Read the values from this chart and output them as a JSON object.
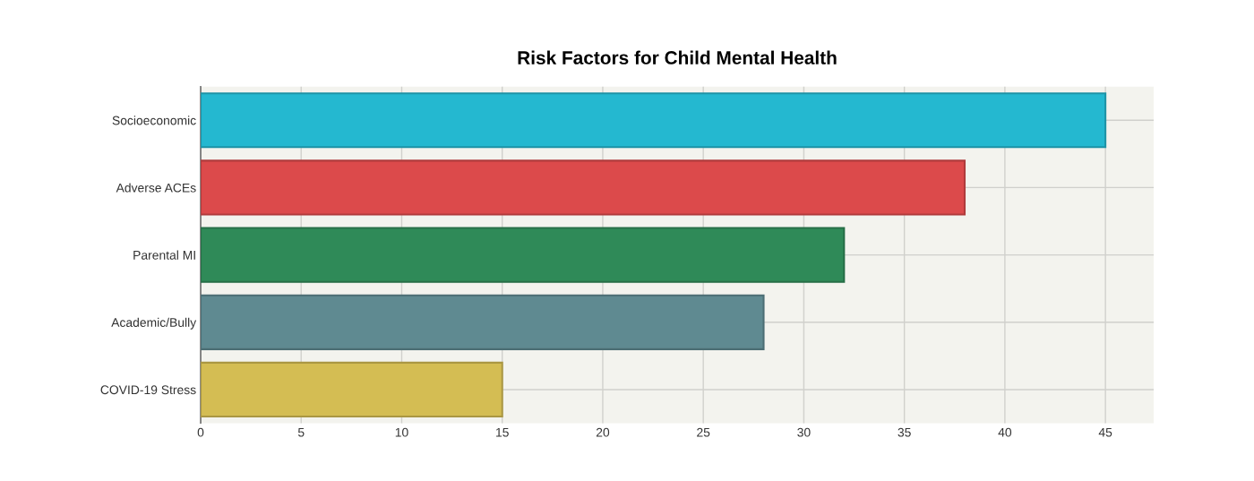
{
  "chart_data": {
    "type": "bar",
    "orientation": "horizontal",
    "title": "Risk Factors for Child Mental Health",
    "categories": [
      "Socioeconomic",
      "Adverse ACEs",
      "Parental MI",
      "Academic/Bully",
      "COVID-19 Stress"
    ],
    "values": [
      45,
      38,
      32,
      28,
      15
    ],
    "colors": [
      "#24b8d0",
      "#dc4a4b",
      "#2f8a58",
      "#5f8a91",
      "#d4bd53"
    ],
    "xlim": [
      0,
      47.4
    ],
    "xticks": [
      0,
      5,
      10,
      15,
      20,
      25,
      30,
      35,
      40,
      45
    ],
    "grid": true
  }
}
